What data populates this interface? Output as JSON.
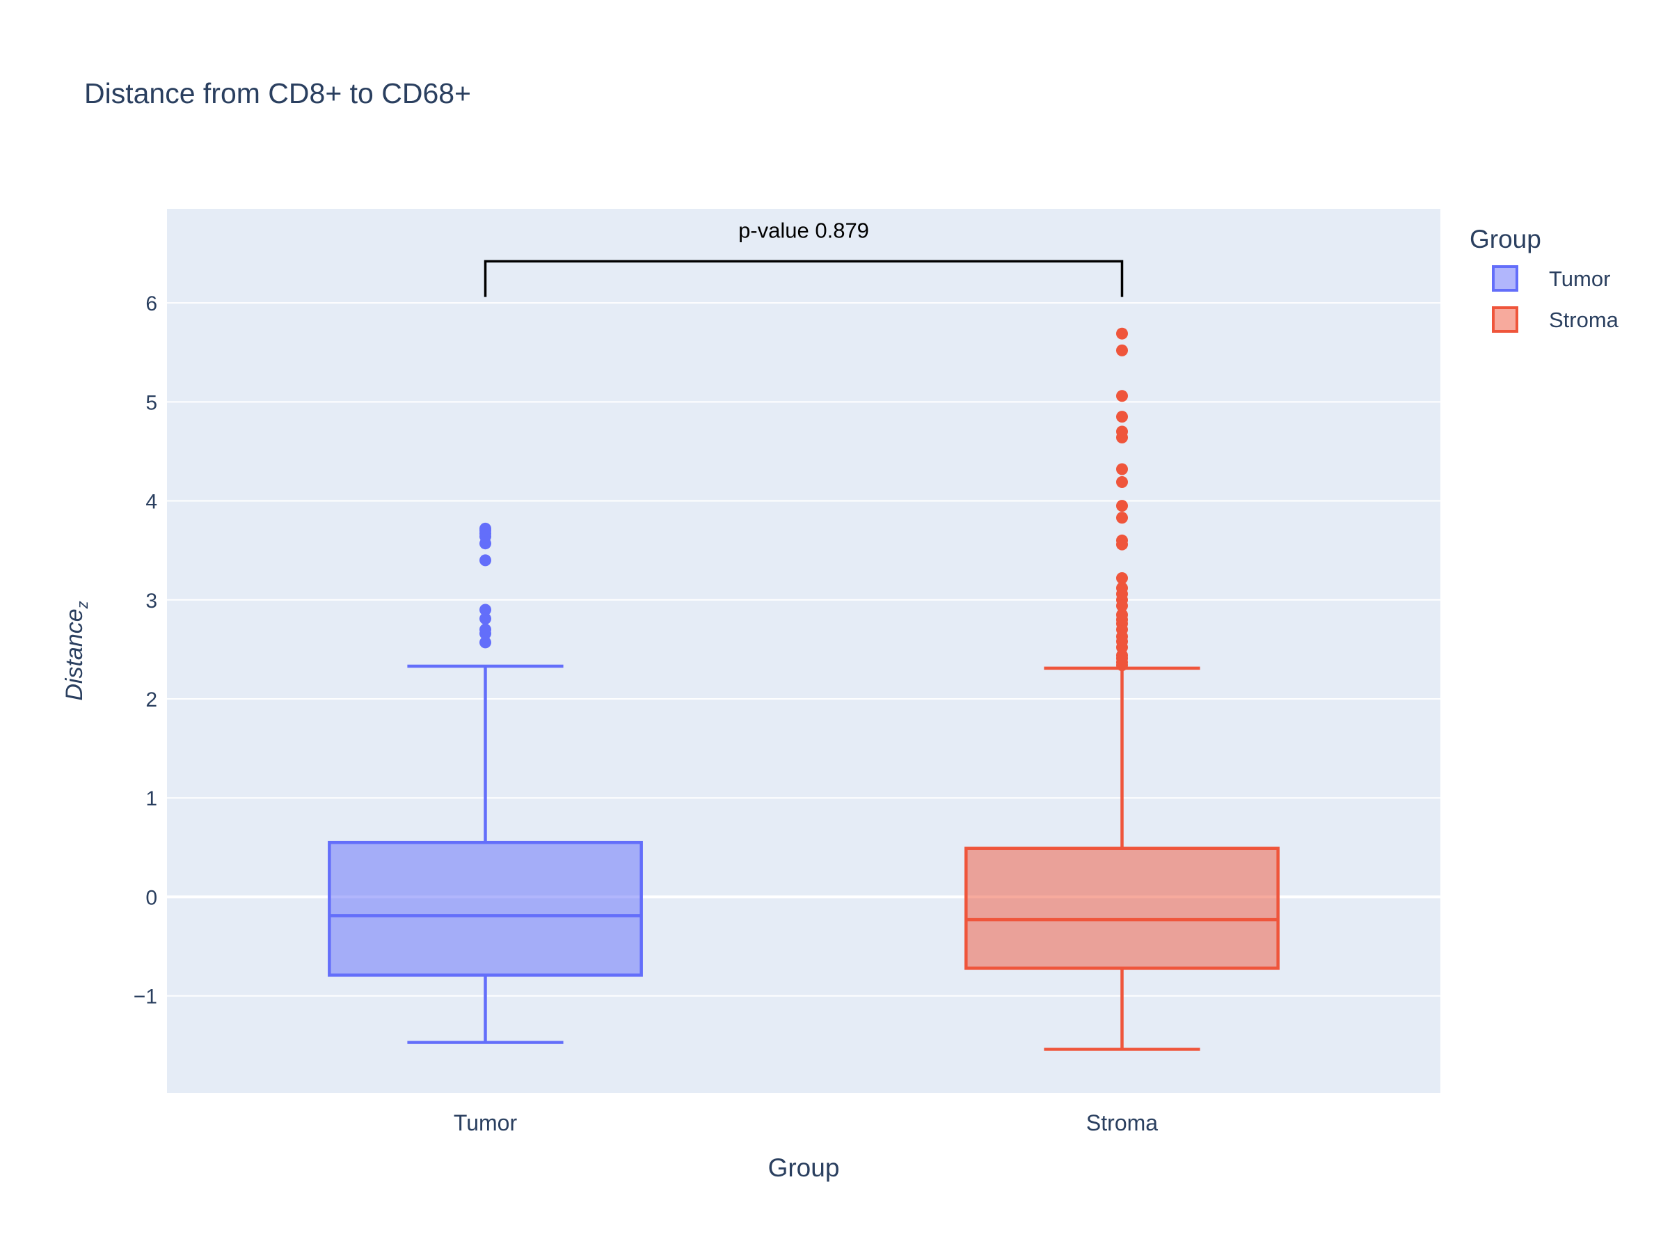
{
  "chart_data": {
    "type": "box",
    "title": "Distance from CD8+ to CD68+",
    "xlabel": "Group",
    "ylabel": {
      "base": "Distance",
      "subscript": "z"
    },
    "categories": [
      "Tumor",
      "Stroma"
    ],
    "ylim": [
      -1.98,
      6.95
    ],
    "yticks": [
      {
        "value": -1,
        "label": "−1"
      },
      {
        "value": 0,
        "label": "0"
      },
      {
        "value": 1,
        "label": "1"
      },
      {
        "value": 2,
        "label": "2"
      },
      {
        "value": 3,
        "label": "3"
      },
      {
        "value": 4,
        "label": "4"
      },
      {
        "value": 5,
        "label": "5"
      },
      {
        "value": 6,
        "label": "6"
      }
    ],
    "grid": true,
    "legend": {
      "title": "Group",
      "position": "right",
      "entries": [
        "Tumor",
        "Stroma"
      ]
    },
    "series": [
      {
        "name": "Tumor",
        "color": "#636efa",
        "fill": "rgba(99,110,250,0.5)",
        "lower_fence": -1.47,
        "q1": -0.79,
        "median": -0.19,
        "q3": 0.55,
        "upper_fence": 2.33,
        "outliers": [
          2.57,
          2.66,
          2.7,
          2.81,
          2.9,
          3.4,
          3.57,
          3.64,
          3.67,
          3.7,
          3.72
        ]
      },
      {
        "name": "Stroma",
        "color": "#ef553b",
        "fill": "rgba(239,85,59,0.5)",
        "lower_fence": -1.54,
        "q1": -0.72,
        "median": -0.23,
        "q3": 0.49,
        "upper_fence": 2.31,
        "outliers": [
          2.34,
          2.37,
          2.41,
          2.44,
          2.52,
          2.58,
          2.63,
          2.7,
          2.76,
          2.8,
          2.85,
          2.94,
          3.0,
          3.06,
          3.12,
          3.22,
          3.56,
          3.6,
          3.83,
          3.95,
          4.19,
          4.32,
          4.64,
          4.7,
          4.85,
          5.06,
          5.52,
          5.69
        ]
      }
    ],
    "annotation": {
      "text": "p-value 0.879",
      "between": [
        "Tumor",
        "Stroma"
      ],
      "bracket_y": 6.42,
      "bracket_bottom": 6.06
    }
  }
}
